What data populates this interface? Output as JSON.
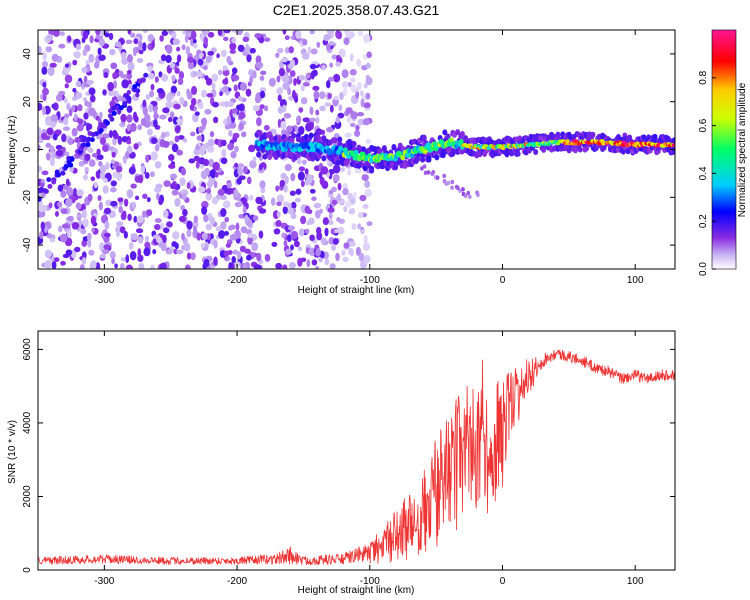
{
  "title": "C2E1.2025.358.07.43.G21",
  "colors": {
    "snr_line": "#ee3333",
    "axis": "#000000",
    "background": "#ffffff",
    "colormap": [
      "#ffffff",
      "#c8b4f4",
      "#8a2be2",
      "#0000ff",
      "#00ccff",
      "#00ff66",
      "#ccff00",
      "#ffcc00",
      "#ff0000",
      "#ff1493"
    ]
  },
  "chart_data": [
    {
      "type": "heatmap",
      "title": "C2E1.2025.358.07.43.G21",
      "xlabel": "Height of straight line (km)",
      "ylabel": "Frequency (Hz)",
      "xlim": [
        -350,
        130
      ],
      "ylim": [
        -50,
        50
      ],
      "xticks": [
        -300,
        -200,
        -100,
        0,
        100
      ],
      "xtick_labels": [
        "-300",
        "-200",
        "-100",
        "0",
        "100"
      ],
      "yticks": [
        -40,
        -20,
        0,
        20,
        40
      ],
      "ytick_labels": [
        "-40",
        "-20",
        "0",
        "20",
        "40"
      ],
      "colorbar": {
        "label": "Normalized spectral amplitude",
        "range": [
          0,
          1
        ],
        "ticks": [
          0,
          0.2,
          0.4,
          0.6,
          0.8
        ],
        "tick_labels": [
          "0.0",
          "0.2",
          "0.4",
          "0.6",
          "0.8"
        ]
      },
      "features": {
        "noise_region_km": [
          -350,
          -120
        ],
        "diagonal_streak": {
          "start": [
            -350,
            -20
          ],
          "end": [
            -270,
            30
          ]
        },
        "signal_band": [
          [
            -180,
            2
          ],
          [
            -160,
            1
          ],
          [
            -140,
            1
          ],
          [
            -120,
            -1
          ],
          [
            -100,
            -4
          ],
          [
            -80,
            -3
          ],
          [
            -60,
            0
          ],
          [
            -40,
            3
          ],
          [
            -20,
            1
          ],
          [
            0,
            1
          ],
          [
            20,
            2
          ],
          [
            40,
            3
          ],
          [
            60,
            3
          ],
          [
            80,
            3
          ],
          [
            100,
            2
          ],
          [
            130,
            2
          ]
        ],
        "faint_tail": [
          [
            -60,
            -8
          ],
          [
            -40,
            -14
          ],
          [
            -20,
            -20
          ]
        ]
      }
    },
    {
      "type": "line",
      "xlabel": "Height of straight line (km)",
      "ylabel": "SNR (10 * v/v)",
      "xlim": [
        -350,
        130
      ],
      "ylim": [
        0,
        6500
      ],
      "xticks": [
        -300,
        -200,
        -100,
        0,
        100
      ],
      "xtick_labels": [
        "-300",
        "-200",
        "-100",
        "0",
        "100"
      ],
      "yticks": [
        0,
        2000,
        4000,
        6000
      ],
      "ytick_labels": [
        "0",
        "2000",
        "4000",
        "6000"
      ],
      "series": [
        {
          "name": "SNR",
          "x": [
            -350,
            -300,
            -250,
            -200,
            -170,
            -160,
            -150,
            -120,
            -100,
            -90,
            -80,
            -70,
            -60,
            -50,
            -40,
            -30,
            -20,
            -15,
            -10,
            0,
            10,
            20,
            30,
            40,
            50,
            60,
            70,
            80,
            90,
            100,
            110,
            120,
            130
          ],
          "y": [
            250,
            300,
            250,
            250,
            300,
            400,
            250,
            300,
            500,
            700,
            1000,
            1300,
            1700,
            2300,
            2700,
            3300,
            3600,
            4200,
            3200,
            3900,
            4800,
            5300,
            5700,
            5900,
            5800,
            5700,
            5500,
            5400,
            5200,
            5300,
            5200,
            5300,
            5300
          ],
          "noise_amplitude": [
            100,
            120,
            100,
            100,
            150,
            250,
            120,
            150,
            250,
            400,
            600,
            800,
            1000,
            1300,
            1400,
            1600,
            1600,
            1500,
            1500,
            1300,
            800,
            400,
            200,
            150,
            150,
            150,
            150,
            150,
            150,
            150,
            150,
            150,
            150
          ]
        }
      ]
    }
  ]
}
